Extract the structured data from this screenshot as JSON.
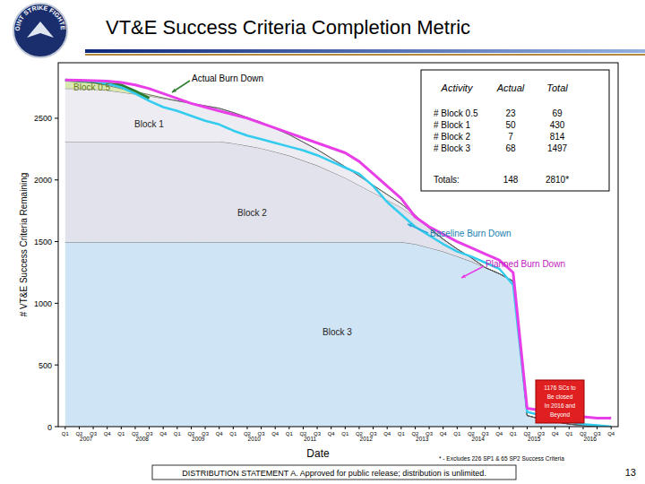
{
  "header": {
    "title": "VT&E Success Criteria Completion Metric",
    "logo_text": "JOINT STRIKE FIGHTER"
  },
  "chart_data": {
    "type": "area",
    "stacked": true,
    "y_label": "# VT&E Success Criteria Remaining",
    "x_label": "Date",
    "categories": [
      "Q1",
      "Q2",
      "Q3",
      "Q4",
      "Q1",
      "Q2",
      "Q3",
      "Q4",
      "Q1",
      "Q2",
      "Q3",
      "Q4",
      "Q1",
      "Q2",
      "Q3",
      "Q4",
      "Q1",
      "Q2",
      "Q3",
      "Q4",
      "Q1",
      "Q2",
      "Q3",
      "Q4",
      "Q1",
      "Q2",
      "Q3",
      "Q4",
      "Q1",
      "Q2",
      "Q3",
      "Q4",
      "Q1",
      "Q2",
      "Q3",
      "Q4",
      "Q1",
      "Q2",
      "Q3",
      "Q4"
    ],
    "year_labels": [
      "2007",
      "2008",
      "2009",
      "2010",
      "2011",
      "2012",
      "2013",
      "2014",
      "2015",
      "2016"
    ],
    "ylim": [
      0,
      2950
    ],
    "yticks": [
      0,
      500,
      1000,
      1500,
      2000,
      2500
    ],
    "series": [
      {
        "name": "Block 3",
        "type": "area",
        "color": "#cfe4f4",
        "values": [
          1497,
          1497,
          1497,
          1497,
          1497,
          1497,
          1497,
          1497,
          1497,
          1497,
          1497,
          1497,
          1497,
          1497,
          1497,
          1497,
          1497,
          1497,
          1497,
          1497,
          1497,
          1497,
          1497,
          1497,
          1497,
          1480,
          1450,
          1420,
          1380,
          1340,
          1290,
          1240,
          1180,
          90,
          60,
          40,
          20,
          10,
          0,
          0
        ]
      },
      {
        "name": "Block 2",
        "type": "area",
        "color": "#e2e2ec",
        "values": [
          814,
          814,
          814,
          814,
          814,
          814,
          814,
          814,
          814,
          814,
          814,
          814,
          800,
          780,
          760,
          730,
          700,
          660,
          620,
          570,
          520,
          460,
          400,
          340,
          280,
          220,
          160,
          100,
          60,
          30,
          0,
          0,
          0,
          0,
          0,
          0,
          0,
          0,
          0,
          0
        ]
      },
      {
        "name": "Block 1",
        "type": "area",
        "color": "#ececf2",
        "values": [
          430,
          430,
          425,
          415,
          400,
          385,
          370,
          350,
          330,
          310,
          290,
          270,
          250,
          230,
          210,
          190,
          170,
          150,
          130,
          110,
          90,
          75,
          60,
          45,
          30,
          15,
          0,
          0,
          0,
          0,
          0,
          0,
          0,
          0,
          0,
          0,
          0,
          0,
          0,
          0
        ]
      },
      {
        "name": "Block 0.5",
        "type": "area",
        "color": "#d8e8b0",
        "values": [
          69,
          60,
          50,
          40,
          30,
          20,
          10,
          5,
          0,
          0,
          0,
          0,
          0,
          0,
          0,
          0,
          0,
          0,
          0,
          0,
          0,
          0,
          0,
          0,
          0,
          0,
          0,
          0,
          0,
          0,
          0,
          0,
          0,
          0,
          0,
          0,
          0,
          0,
          0,
          0
        ]
      },
      {
        "name": "Actual Burn Down",
        "type": "line",
        "color": "#2e7d32",
        "values": [
          2810,
          2800,
          2795,
          2780,
          2770,
          2720,
          2662,
          null,
          null,
          null,
          null,
          null,
          null,
          null,
          null,
          null,
          null,
          null,
          null,
          null,
          null,
          null,
          null,
          null,
          null,
          null,
          null,
          null,
          null,
          null,
          null,
          null,
          null,
          null,
          null,
          null,
          null,
          null,
          null,
          null
        ]
      },
      {
        "name": "Baseline Burn Down",
        "type": "line",
        "color": "#33ccee",
        "values": [
          2810,
          2805,
          2800,
          2780,
          2750,
          2700,
          2640,
          2590,
          2560,
          2520,
          2480,
          2450,
          2400,
          2360,
          2330,
          2300,
          2270,
          2240,
          2200,
          2150,
          2100,
          2050,
          1950,
          1820,
          1720,
          1620,
          1550,
          1480,
          1420,
          1380,
          1330,
          1280,
          1150,
          120,
          90,
          60,
          40,
          20,
          10,
          0
        ]
      },
      {
        "name": "Planned Burn Down",
        "type": "line",
        "color": "#e83ee8",
        "values": [
          2810,
          2808,
          2805,
          2800,
          2790,
          2770,
          2740,
          2700,
          2660,
          2620,
          2590,
          2560,
          2530,
          2500,
          2460,
          2420,
          2380,
          2340,
          2300,
          2260,
          2220,
          2150,
          2050,
          1950,
          1850,
          1700,
          1620,
          1560,
          1500,
          1450,
          1400,
          1350,
          1250,
          150,
          130,
          110,
          90,
          80,
          70,
          70
        ]
      }
    ],
    "callout": [
      "1176 SCs to",
      "Be closed",
      "In 2016 and",
      "Beyond"
    ],
    "table": {
      "header": [
        "Activity",
        "Actual",
        "Total"
      ],
      "rows": [
        [
          "# Block 0.5",
          23,
          69
        ],
        [
          "# Block 1",
          50,
          430
        ],
        [
          "# Block 2",
          7,
          814
        ],
        [
          "# Block 3",
          68,
          1497
        ]
      ],
      "totals": [
        "Totals:",
        148,
        "2810*"
      ]
    },
    "footnote": "* - Excludes 226 SP1 & 65 SP2 Success Criteria"
  },
  "footer": {
    "statement": "DISTRIBUTION STATEMENT A.  Approved for public release; distribution is unlimited.",
    "page": "13"
  }
}
